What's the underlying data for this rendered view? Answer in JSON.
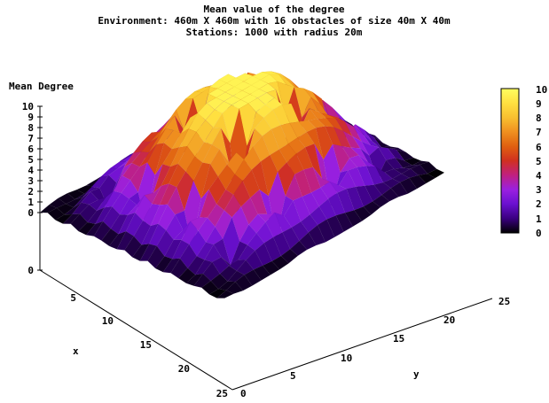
{
  "chart_data": {
    "type": "surface3d",
    "title": [
      "Mean value of the degree",
      "Environment: 460m X 460m with 16 obstacles of size 40m X 40m",
      "Stations: 1000 with radius 20m"
    ],
    "zlabel": "Mean Degree",
    "xlabel": "x",
    "ylabel": "y",
    "x_range": [
      0,
      25
    ],
    "y_range": [
      0,
      25
    ],
    "z_range": [
      0,
      10
    ],
    "x_ticks": [
      "0",
      "5",
      "10",
      "15",
      "20",
      "25"
    ],
    "y_ticks": [
      "0",
      "5",
      "10",
      "15",
      "20",
      "25"
    ],
    "z_ticks": [
      "0",
      "1",
      "2",
      "3",
      "4",
      "5",
      "6",
      "7",
      "8",
      "9",
      "10"
    ],
    "colorbar": {
      "ticks": [
        "0",
        "1",
        "2",
        "3",
        "4",
        "5",
        "6",
        "7",
        "8",
        "9",
        "10"
      ],
      "stops": [
        "#000000",
        "#3a0080",
        "#6a10d0",
        "#9a20e0",
        "#c02080",
        "#d03020",
        "#e06010",
        "#f09020",
        "#f8c030",
        "#ffe040",
        "#ffff60"
      ]
    },
    "grid_size": [
      25,
      25
    ],
    "surface_z": "continuous 25x25 grid: 0 at the outer boundary, peak about 9.5 near the center, dips to about 0 at 16 obstacle cells arranged 4x4"
  }
}
